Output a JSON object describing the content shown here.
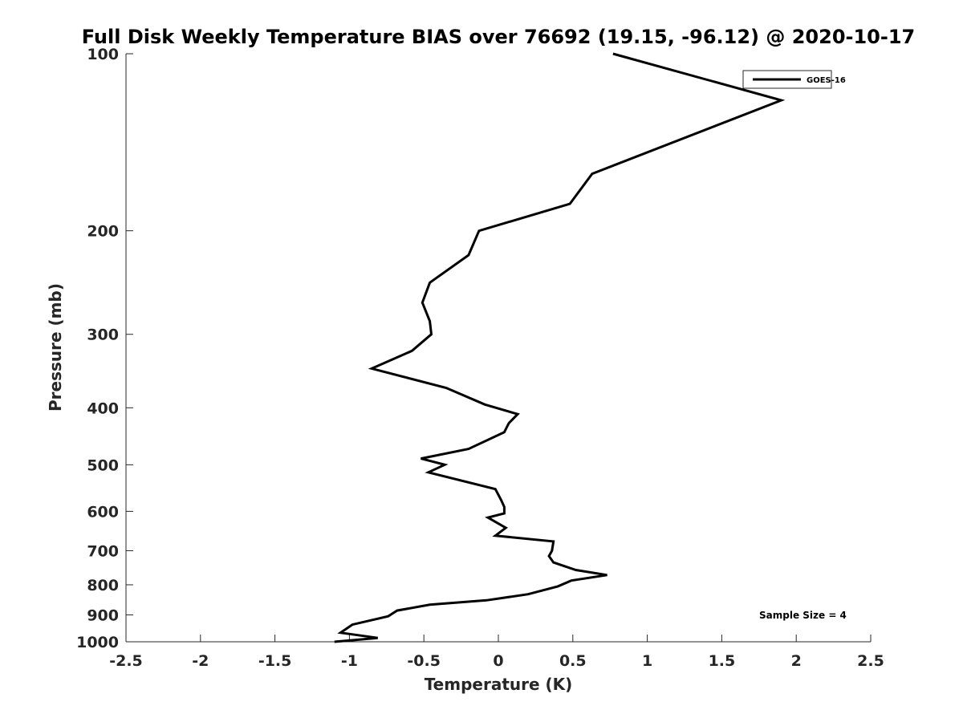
{
  "chart_data": {
    "type": "line",
    "title": "Full Disk Weekly Temperature BIAS over 76692 (19.15, -96.12) @ 2020-10-17",
    "xlabel": "Temperature (K)",
    "ylabel": "Pressure (mb)",
    "xlim": [
      -2.5,
      2.5
    ],
    "ylim": [
      100,
      1000
    ],
    "yscale": "log",
    "y_reversed": true,
    "grid": false,
    "legend_position": "top-right",
    "x_ticks": [
      "-2.5",
      "-2",
      "-1.5",
      "-1",
      "-0.5",
      "0",
      "0.5",
      "1",
      "1.5",
      "2",
      "2.5"
    ],
    "x_tick_values": [
      -2.5,
      -2,
      -1.5,
      -1,
      -0.5,
      0,
      0.5,
      1,
      1.5,
      2,
      2.5
    ],
    "y_ticks": [
      "100",
      "200",
      "300",
      "400",
      "500",
      "600",
      "700",
      "800",
      "900",
      "1000"
    ],
    "y_tick_values": [
      100,
      200,
      300,
      400,
      500,
      600,
      700,
      800,
      900,
      1000
    ],
    "series": [
      {
        "name": "GOES-16",
        "color": "#000000",
        "points": [
          [
            0.77,
            100
          ],
          [
            1.9,
            120
          ],
          [
            0.63,
            160
          ],
          [
            0.48,
            180
          ],
          [
            -0.13,
            200
          ],
          [
            -0.2,
            220
          ],
          [
            -0.46,
            245
          ],
          [
            -0.51,
            265
          ],
          [
            -0.46,
            285
          ],
          [
            -0.45,
            300
          ],
          [
            -0.58,
            320
          ],
          [
            -0.85,
            343
          ],
          [
            -0.35,
            370
          ],
          [
            -0.09,
            395
          ],
          [
            0.13,
            410
          ],
          [
            0.07,
            425
          ],
          [
            0.04,
            440
          ],
          [
            -0.2,
            470
          ],
          [
            -0.52,
            488
          ],
          [
            -0.36,
            500
          ],
          [
            -0.47,
            515
          ],
          [
            -0.02,
            550
          ],
          [
            0.02,
            575
          ],
          [
            0.04,
            590
          ],
          [
            0.04,
            605
          ],
          [
            -0.07,
            615
          ],
          [
            0.05,
            640
          ],
          [
            -0.02,
            660
          ],
          [
            0.37,
            675
          ],
          [
            0.36,
            700
          ],
          [
            0.34,
            715
          ],
          [
            0.37,
            733
          ],
          [
            0.52,
            755
          ],
          [
            0.73,
            770
          ],
          [
            0.49,
            787
          ],
          [
            0.4,
            805
          ],
          [
            0.2,
            830
          ],
          [
            -0.08,
            850
          ],
          [
            -0.46,
            865
          ],
          [
            -0.68,
            885
          ],
          [
            -0.74,
            905
          ],
          [
            -0.98,
            935
          ],
          [
            -1.06,
            965
          ],
          [
            -0.81,
            985
          ],
          [
            -1.1,
            1000
          ]
        ]
      }
    ],
    "annotations": [
      "Sample Size = 4"
    ]
  }
}
